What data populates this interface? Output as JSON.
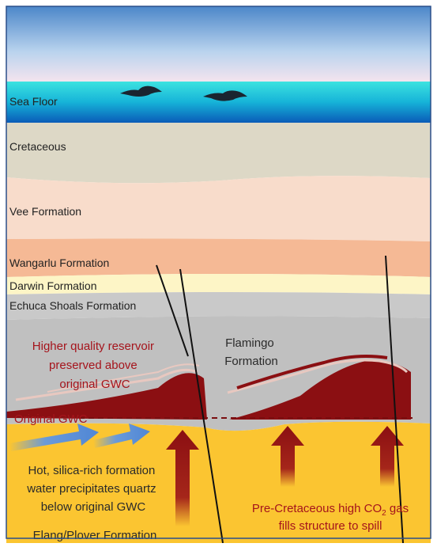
{
  "layers": [
    "Sea Floor",
    "Cretaceous",
    "Vee Formation",
    "Wangarlu Formation",
    "Darwin Formation",
    "Echuca Shoals Formation",
    "Elang/Plover Formation"
  ],
  "annotations": {
    "reservoir": [
      "Higher quality reservoir",
      "preserved above",
      "original GWC"
    ],
    "flamingo": [
      "Flamingo",
      "Formation"
    ],
    "gwc": "Original GWC",
    "quartz": [
      "Hot, silica-rich formation",
      "water precipitates quartz",
      "below original GWC"
    ],
    "gas": {
      "before": "Pre-Cretaceous high CO",
      "subscript": "2",
      "after": " gas",
      "line2": "fills structure to spill"
    }
  }
}
